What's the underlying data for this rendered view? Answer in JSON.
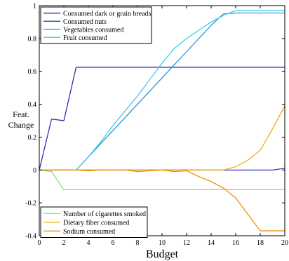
{
  "chart_data": {
    "type": "line",
    "xlabel": "Budget",
    "ylabel_lines": [
      "Feat.",
      "Change"
    ],
    "xlim": [
      0,
      20
    ],
    "ylim": [
      -0.4,
      1
    ],
    "xticks": [
      "0",
      "2",
      "4",
      "6",
      "8",
      "10",
      "12",
      "14",
      "16",
      "18",
      "20"
    ],
    "yticks": [
      "-0.4",
      "-0.2",
      "0",
      "0.2",
      "0.4",
      "0.6",
      "0.8",
      "1"
    ],
    "grid": false,
    "x": [
      0,
      1,
      2,
      3,
      4,
      5,
      6,
      7,
      8,
      9,
      10,
      11,
      12,
      13,
      14,
      15,
      16,
      17,
      18,
      19,
      20
    ],
    "legends": [
      {
        "position": "top-left",
        "series_indices": [
          0,
          1,
          2,
          3
        ]
      },
      {
        "position": "bottom-left",
        "series_indices": [
          4,
          5,
          6
        ]
      }
    ],
    "series": [
      {
        "name": "Consumed dark or grain breads",
        "color": "#1f1fa8",
        "values": [
          0,
          0.31,
          0.3,
          0.625,
          0.625,
          0.625,
          0.625,
          0.625,
          0.625,
          0.625,
          0.625,
          0.625,
          0.625,
          0.625,
          0.625,
          0.625,
          0.625,
          0.625,
          0.625,
          0.625,
          0.625
        ]
      },
      {
        "name": "Consumed nuts",
        "color": "#2323c4",
        "values": [
          0,
          0,
          0,
          0,
          0,
          0,
          0,
          0,
          0,
          0,
          0,
          0,
          0,
          0,
          0,
          0,
          0,
          0,
          0,
          0,
          0.01
        ]
      },
      {
        "name": "Vegetables consumed",
        "color": "#1f8fd8",
        "values": [
          0,
          0,
          0,
          0,
          0.08,
          0.16,
          0.24,
          0.32,
          0.4,
          0.48,
          0.56,
          0.64,
          0.72,
          0.8,
          0.88,
          0.95,
          0.955,
          0.955,
          0.955,
          0.955,
          0.955
        ]
      },
      {
        "name": "Fruit consumed",
        "color": "#33c8ec",
        "values": [
          0,
          0,
          0,
          0,
          0.08,
          0.17,
          0.27,
          0.36,
          0.45,
          0.55,
          0.65,
          0.74,
          0.8,
          0.85,
          0.9,
          0.94,
          0.97,
          0.97,
          0.97,
          0.97,
          0.97
        ]
      },
      {
        "name": "Number of cigarettes smoked",
        "color": "#7ee07e",
        "values": [
          0,
          -0.01,
          -0.12,
          -0.12,
          -0.12,
          -0.12,
          -0.12,
          -0.12,
          -0.12,
          -0.12,
          -0.12,
          -0.12,
          -0.12,
          -0.12,
          -0.12,
          -0.12,
          -0.12,
          -0.12,
          -0.12,
          -0.12,
          -0.12
        ]
      },
      {
        "name": "Dietary fiber consumed",
        "color": "#f0a800",
        "values": [
          0,
          0,
          0,
          0,
          0,
          0,
          0,
          0,
          0,
          0,
          0,
          0,
          0,
          0,
          0,
          0,
          0.02,
          0.06,
          0.12,
          0.25,
          0.39
        ]
      },
      {
        "name": "Sodium consumed",
        "color": "#f08a00",
        "values": [
          0,
          0,
          0,
          0,
          -0.005,
          0,
          0,
          0,
          -0.01,
          -0.005,
          0,
          -0.01,
          -0.005,
          -0.04,
          -0.07,
          -0.11,
          -0.17,
          -0.27,
          -0.37,
          -0.37,
          -0.37
        ]
      }
    ]
  }
}
